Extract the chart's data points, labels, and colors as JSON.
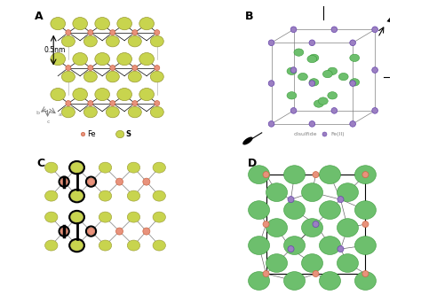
{
  "background": "#ffffff",
  "fe_color": "#e8927c",
  "s_color_a": "#c8d44e",
  "s_color_b": "#6dbf6d",
  "fe_color_b": "#9b7fc2",
  "panel_labels": [
    "A",
    "B",
    "C",
    "D"
  ],
  "legend_fe_color": "#e8927c",
  "legend_s_color": "#c8d44e",
  "scale_bar": "0.5nm",
  "subtitle": "disulfide",
  "subtitle2": "Fe(II)"
}
